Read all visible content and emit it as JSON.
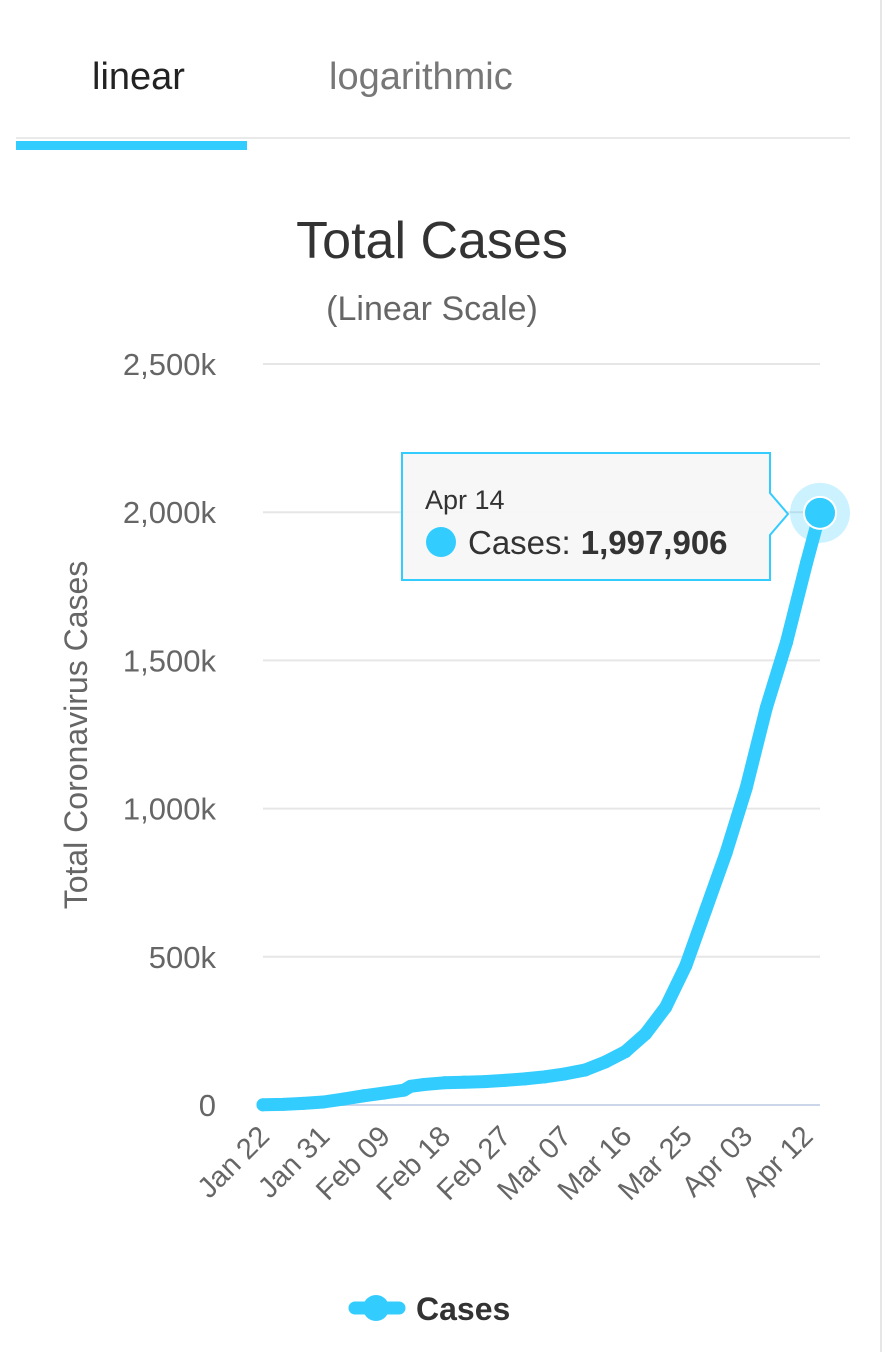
{
  "tabs": [
    {
      "label": "linear",
      "active": true
    },
    {
      "label": "logarithmic",
      "active": false
    }
  ],
  "colors": {
    "accent": "#33ccff",
    "gridline": "#e6e6e6",
    "axis": "#ccd6eb",
    "text": "#333333",
    "muted": "#666666"
  },
  "chart_data": {
    "type": "line",
    "title": "Total Cases",
    "subtitle": "(Linear Scale)",
    "ylabel": "Total Coronavirus Cases",
    "ylim": [
      0,
      2500000
    ],
    "yticks": [
      {
        "value": 0,
        "label": "0"
      },
      {
        "value": 500000,
        "label": "500k"
      },
      {
        "value": 1000000,
        "label": "1,000k"
      },
      {
        "value": 1500000,
        "label": "1,500k"
      },
      {
        "value": 2000000,
        "label": "2,000k"
      },
      {
        "value": 2500000,
        "label": "2,500k"
      }
    ],
    "xlim": [
      "Jan 22",
      "Apr 14"
    ],
    "xticks": [
      "Jan 22",
      "Jan 31",
      "Feb 09",
      "Feb 18",
      "Feb 27",
      "Mar 07",
      "Mar 16",
      "Mar 25",
      "Apr 03",
      "Apr 12"
    ],
    "grid": true,
    "legend_position": "bottom-center",
    "series": [
      {
        "name": "Cases",
        "color": "#33ccff",
        "x": [
          "Jan 22",
          "Jan 25",
          "Jan 28",
          "Jan 31",
          "Feb 03",
          "Feb 06",
          "Feb 09",
          "Feb 12",
          "Feb 13",
          "Feb 15",
          "Feb 18",
          "Feb 21",
          "Feb 24",
          "Feb 27",
          "Mar 01",
          "Mar 04",
          "Mar 07",
          "Mar 10",
          "Mar 13",
          "Mar 16",
          "Mar 19",
          "Mar 22",
          "Mar 25",
          "Mar 28",
          "Mar 31",
          "Apr 03",
          "Apr 06",
          "Apr 09",
          "Apr 12",
          "Apr 14"
        ],
        "values": [
          580,
          2000,
          5500,
          10000,
          20000,
          31000,
          40000,
          50000,
          63000,
          69000,
          75000,
          77000,
          79000,
          83000,
          88000,
          95000,
          105000,
          118000,
          145000,
          180000,
          240000,
          330000,
          470000,
          660000,
          850000,
          1070000,
          1340000,
          1560000,
          1830000,
          1997906
        ]
      }
    ],
    "tooltip": {
      "date": "Apr 14",
      "series_label": "Cases:",
      "value_label": "1,997,906"
    }
  }
}
